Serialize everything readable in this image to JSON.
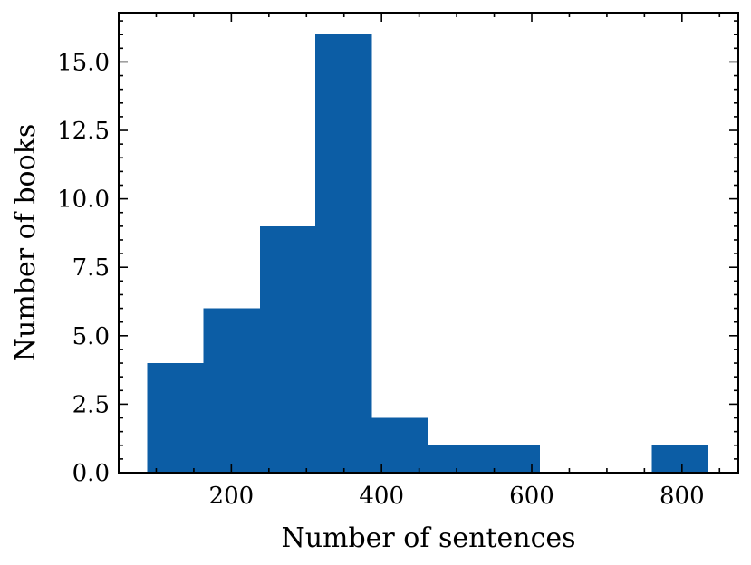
{
  "chart_data": {
    "type": "bar",
    "subtype": "histogram",
    "title": "",
    "xlabel": "Number of sentences",
    "ylabel": "Number of books",
    "xlim": [
      50,
      875
    ],
    "ylim": [
      0,
      16.8
    ],
    "bins": [
      {
        "start": 88,
        "end": 163,
        "count": 4
      },
      {
        "start": 163,
        "end": 238,
        "count": 6
      },
      {
        "start": 238,
        "end": 312,
        "count": 9
      },
      {
        "start": 312,
        "end": 387,
        "count": 16
      },
      {
        "start": 387,
        "end": 461,
        "count": 2
      },
      {
        "start": 461,
        "end": 536,
        "count": 1
      },
      {
        "start": 536,
        "end": 611,
        "count": 1
      },
      {
        "start": 611,
        "end": 686,
        "count": 0
      },
      {
        "start": 686,
        "end": 760,
        "count": 0
      },
      {
        "start": 760,
        "end": 835,
        "count": 1
      }
    ],
    "x_ticks": [
      {
        "value": 200,
        "label": "200"
      },
      {
        "value": 400,
        "label": "400"
      },
      {
        "value": 600,
        "label": "600"
      },
      {
        "value": 800,
        "label": "800"
      }
    ],
    "y_ticks": [
      {
        "value": 0.0,
        "label": "0.0"
      },
      {
        "value": 2.5,
        "label": "2.5"
      },
      {
        "value": 5.0,
        "label": "5.0"
      },
      {
        "value": 7.5,
        "label": "7.5"
      },
      {
        "value": 10.0,
        "label": "10.0"
      },
      {
        "value": 12.5,
        "label": "12.5"
      },
      {
        "value": 15.0,
        "label": "15.0"
      }
    ],
    "x_minor_step": 50,
    "y_minor_step": 0.5,
    "grid": false,
    "legend": "none",
    "bar_color": "#0C5DA5"
  }
}
